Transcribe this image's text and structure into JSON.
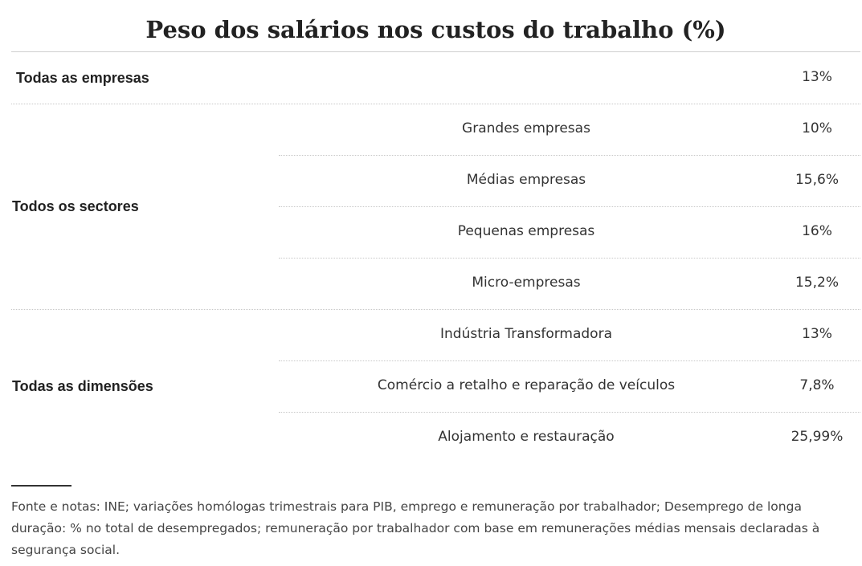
{
  "chart_data": {
    "type": "table",
    "title": "Peso dos salários nos custos do trabalho (%)",
    "groups": [
      {
        "label": "Todas as empresas",
        "rows": [
          {
            "name": "",
            "value": "13%"
          }
        ]
      },
      {
        "label": "Todos os sectores",
        "rows": [
          {
            "name": "Grandes empresas",
            "value": "10%"
          },
          {
            "name": "Médias empresas",
            "value": "15,6%"
          },
          {
            "name": "Pequenas empresas",
            "value": "16%"
          },
          {
            "name": "Micro-empresas",
            "value": "15,2%"
          }
        ]
      },
      {
        "label": "Todas as dimensões",
        "rows": [
          {
            "name": "Indústria Transformadora",
            "value": "13%"
          },
          {
            "name": "Comércio a retalho e reparação de veículos",
            "value": "7,8%"
          },
          {
            "name": "Alojamento e restauração",
            "value": "25,99%"
          }
        ]
      }
    ],
    "notes": "Fonte e notas: INE; variações homólogas trimestrais para PIB, emprego e remuneração por trabalhador; Desemprego de longa duração: % no total de desempregados; remuneração por trabalhador com base em remunerações médias mensais declaradas à segurança social."
  }
}
